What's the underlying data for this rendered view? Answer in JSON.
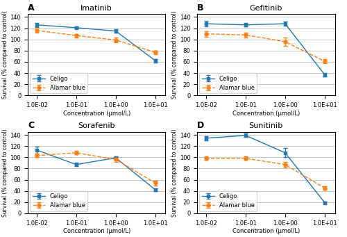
{
  "chart_data": [
    {
      "type": "line",
      "title": "Imatinib",
      "annotations": [
        "A"
      ],
      "xlabel": "Concentration (μmol/L)",
      "ylabel": "Survival (% compared to control)",
      "log": "x",
      "grid": "y",
      "legend": "lower left",
      "x": [
        0.01,
        0.1,
        1.0,
        10.0
      ],
      "xlim": [
        0.006,
        18
      ],
      "xticks": [
        {
          "value": 0.01,
          "label": "1.0E-02"
        },
        {
          "value": 0.1,
          "label": "1.0E-01"
        },
        {
          "value": 1.0,
          "label": "1.0E+00"
        },
        {
          "value": 10.0,
          "label": "1.0E+01"
        }
      ],
      "ylim": [
        0,
        145
      ],
      "yticks": [
        0,
        20,
        40,
        60,
        80,
        100,
        120,
        140
      ],
      "series": [
        {
          "name": "Celigo",
          "values": [
            126,
            121,
            115,
            62
          ],
          "errors": [
            4,
            2,
            3,
            3
          ],
          "marker": "square",
          "line_style": "solid"
        },
        {
          "name": "Alamar blue",
          "values": [
            116,
            107,
            99,
            77
          ],
          "errors": [
            4,
            3,
            4,
            3
          ],
          "marker": "circle",
          "line_style": "dashed"
        }
      ]
    },
    {
      "type": "line",
      "title": "Gefitinib",
      "annotations": [
        "B"
      ],
      "xlabel": "Concentration (μmol/L)",
      "ylabel": "Survival (% compared to control)",
      "log": "x",
      "grid": "y",
      "legend": "lower left",
      "x": [
        0.01,
        0.1,
        1.0,
        10.0
      ],
      "xlim": [
        0.006,
        18
      ],
      "xticks": [
        {
          "value": 0.01,
          "label": "1.0E-02"
        },
        {
          "value": 0.1,
          "label": "1.0E-01"
        },
        {
          "value": 1.0,
          "label": "1.0E+00"
        },
        {
          "value": 10.0,
          "label": "1.0E+01"
        }
      ],
      "ylim": [
        0,
        145
      ],
      "yticks": [
        0,
        20,
        40,
        60,
        80,
        100,
        120,
        140
      ],
      "series": [
        {
          "name": "Celigo",
          "values": [
            128,
            126,
            128,
            37
          ],
          "errors": [
            5,
            3,
            4,
            3
          ],
          "marker": "square",
          "line_style": "solid"
        },
        {
          "name": "Alamar blue",
          "values": [
            110,
            108,
            96,
            61
          ],
          "errors": [
            5,
            4,
            7,
            4
          ],
          "marker": "circle",
          "line_style": "dashed"
        }
      ]
    },
    {
      "type": "line",
      "title": "Sorafenib",
      "annotations": [
        "C"
      ],
      "xlabel": "Concentration (μmol/L)",
      "ylabel": "Survival (% compared to control)",
      "log": "x",
      "grid": "y",
      "legend": "lower left",
      "x": [
        0.01,
        0.1,
        1.0,
        10.0
      ],
      "xlim": [
        0.006,
        18
      ],
      "xticks": [
        {
          "value": 0.01,
          "label": "1.0E-02"
        },
        {
          "value": 0.1,
          "label": "1.0E-01"
        },
        {
          "value": 1.0,
          "label": "1.0E+00"
        },
        {
          "value": 10.0,
          "label": "1.0E+01"
        }
      ],
      "ylim": [
        0,
        145
      ],
      "yticks": [
        0,
        20,
        40,
        60,
        80,
        100,
        120,
        140
      ],
      "series": [
        {
          "name": "Celigo",
          "values": [
            113,
            87,
            99,
            42
          ],
          "errors": [
            6,
            3,
            2,
            2
          ],
          "marker": "square",
          "line_style": "solid"
        },
        {
          "name": "Alamar blue",
          "values": [
            103,
            108,
            96,
            54
          ],
          "errors": [
            3,
            3,
            4,
            4
          ],
          "marker": "circle",
          "line_style": "dashed"
        }
      ]
    },
    {
      "type": "line",
      "title": "Sunitinib",
      "annotations": [
        "D"
      ],
      "xlabel": "Concentration (μmol/L)",
      "ylabel": "Survival (% compared to control)",
      "log": "x",
      "grid": "y",
      "legend": "lower left",
      "x": [
        0.01,
        0.1,
        1.0,
        10.0
      ],
      "xlim": [
        0.006,
        18
      ],
      "xticks": [
        {
          "value": 0.01,
          "label": "1.0E-02"
        },
        {
          "value": 0.1,
          "label": "1.0E-01"
        },
        {
          "value": 1.0,
          "label": "1.0E+00"
        },
        {
          "value": 10.0,
          "label": "1.0E+01"
        }
      ],
      "ylim": [
        0,
        145
      ],
      "yticks": [
        0,
        20,
        40,
        60,
        80,
        100,
        120,
        140
      ],
      "series": [
        {
          "name": "Celigo",
          "values": [
            134,
            139,
            108,
            19
          ],
          "errors": [
            4,
            3,
            8,
            2
          ],
          "marker": "square",
          "line_style": "solid"
        },
        {
          "name": "Alamar blue",
          "values": [
            98,
            98,
            87,
            45
          ],
          "errors": [
            3,
            3,
            5,
            3
          ],
          "marker": "circle",
          "line_style": "dashed"
        }
      ]
    }
  ]
}
